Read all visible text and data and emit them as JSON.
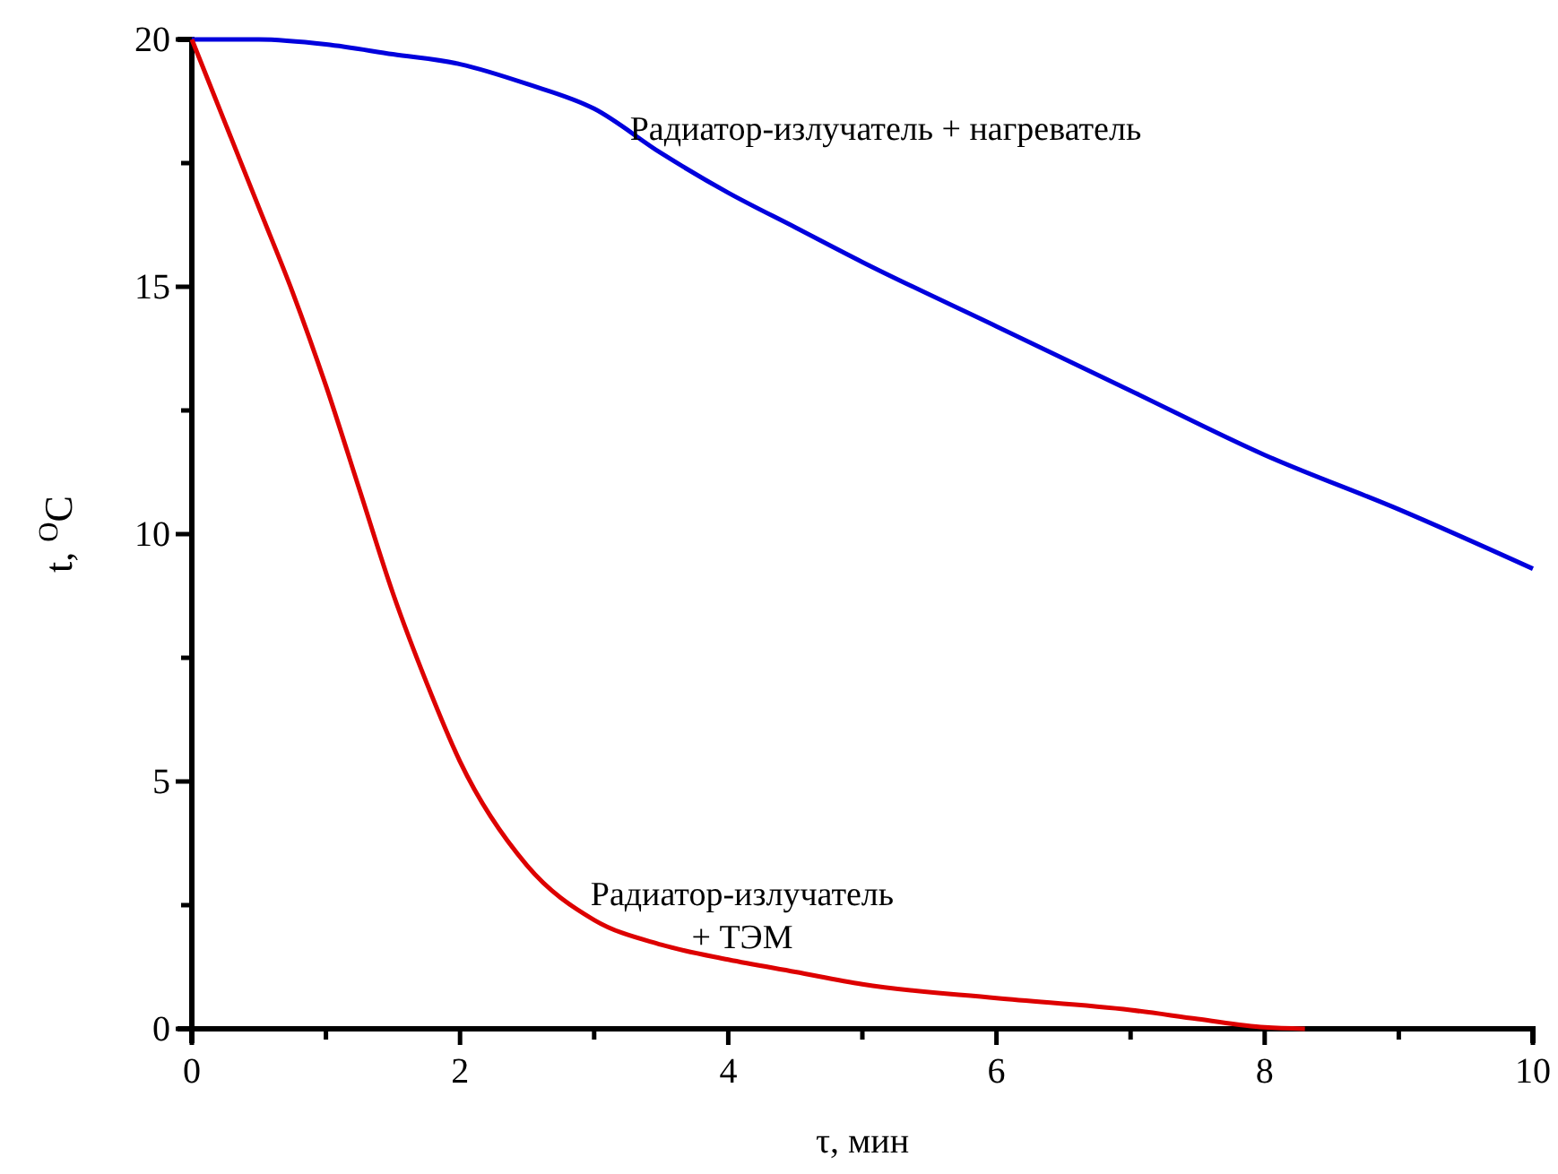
{
  "chart_data": {
    "type": "line",
    "xlabel": "τ, мин",
    "ylabel": "t, $^{O}$C",
    "xlim": [
      0,
      10
    ],
    "ylim": [
      0,
      20
    ],
    "xticks": [
      0,
      {
        "value": 1,
        "label": null
      },
      2,
      {
        "value": 3,
        "label": null
      },
      4,
      {
        "value": 5,
        "label": null
      },
      6,
      {
        "value": 7,
        "label": null
      },
      8,
      {
        "value": 9,
        "label": null
      },
      10
    ],
    "yticks": [
      0,
      {
        "value": 2.5,
        "label": null
      },
      5,
      {
        "value": 7.5,
        "label": null
      },
      10,
      {
        "value": 12.5,
        "label": null
      },
      15,
      {
        "value": 17.5,
        "label": null
      },
      20
    ],
    "grid": false,
    "marker": "none",
    "line_style": "solid",
    "series": [
      {
        "name": "Радиатор-излучатель + нагреватель",
        "color": "#0000dd",
        "x": [
          0,
          0.5,
          1,
          1.5,
          2,
          2.5,
          3,
          3.5,
          4,
          4.5,
          5,
          6,
          7,
          8,
          9,
          10
        ],
        "values": [
          20,
          20,
          19.9,
          19.7,
          19.5,
          19.1,
          18.6,
          17.7,
          16.9,
          16.2,
          15.5,
          14.2,
          12.9,
          11.6,
          10.5,
          9.3
        ]
      },
      {
        "name": "Радиатор-излучатель + ТЭМ",
        "color": "#dd0000",
        "x": [
          0,
          0.25,
          0.5,
          0.75,
          1,
          1.25,
          1.5,
          1.75,
          2,
          2.5,
          3,
          3.5,
          4,
          4.5,
          5,
          6,
          7,
          7.5,
          8,
          8.3
        ],
        "values": [
          20,
          18.3,
          16.6,
          14.9,
          13.0,
          10.9,
          8.8,
          7.0,
          5.4,
          3.3,
          2.2,
          1.7,
          1.4,
          1.15,
          0.9,
          0.62,
          0.38,
          0.2,
          0.03,
          0
        ]
      }
    ]
  }
}
